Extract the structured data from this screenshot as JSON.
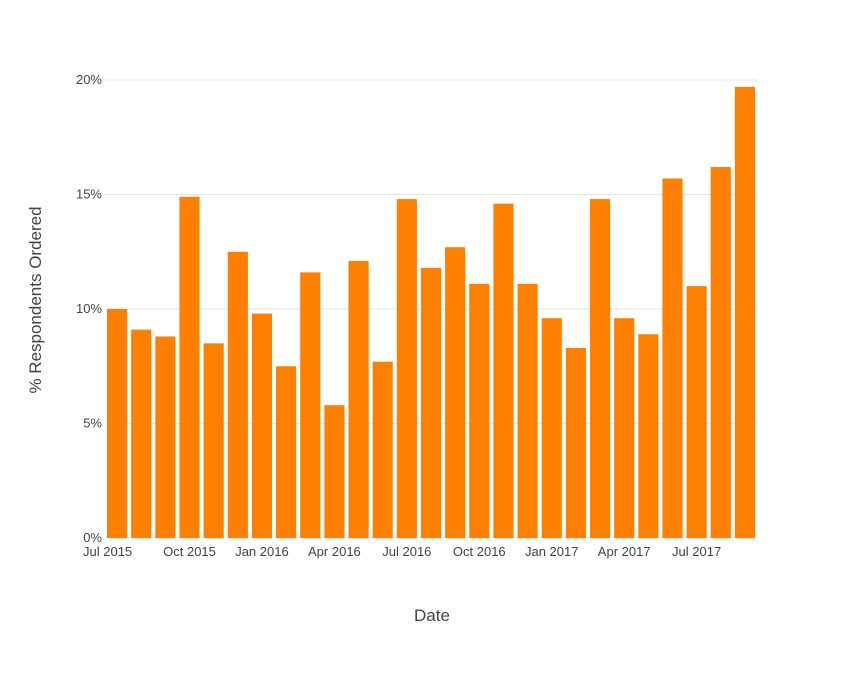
{
  "chart_data": {
    "type": "bar",
    "title": "",
    "xlabel": "Date",
    "ylabel": "% Respondents Ordered",
    "ylim": [
      0,
      20
    ],
    "yticks": [
      {
        "value": 0,
        "label": "0%"
      },
      {
        "value": 5,
        "label": "5%"
      },
      {
        "value": 10,
        "label": "10%"
      },
      {
        "value": 15,
        "label": "15%"
      },
      {
        "value": 20,
        "label": "20%"
      }
    ],
    "xticks": [
      {
        "category": "2015-07",
        "label": "Jul 2015"
      },
      {
        "category": "2015-10",
        "label": "Oct 2015"
      },
      {
        "category": "2016-01",
        "label": "Jan 2016"
      },
      {
        "category": "2016-04",
        "label": "Apr 2016"
      },
      {
        "category": "2016-07",
        "label": "Jul 2016"
      },
      {
        "category": "2016-10",
        "label": "Oct 2016"
      },
      {
        "category": "2017-01",
        "label": "Jan 2017"
      },
      {
        "category": "2017-04",
        "label": "Apr 2017"
      },
      {
        "category": "2017-07",
        "label": "Jul 2017"
      }
    ],
    "categories": [
      "2015-07",
      "2015-08",
      "2015-09",
      "2015-10",
      "2015-11",
      "2015-12",
      "2016-01",
      "2016-02",
      "2016-03",
      "2016-04",
      "2016-05",
      "2016-06",
      "2016-07",
      "2016-08",
      "2016-09",
      "2016-10",
      "2016-11",
      "2016-12",
      "2017-01",
      "2017-02",
      "2017-03",
      "2017-04",
      "2017-05",
      "2017-06",
      "2017-07",
      "2017-08",
      "2017-09"
    ],
    "values": [
      10.0,
      9.1,
      8.8,
      14.9,
      8.5,
      12.5,
      9.8,
      7.5,
      11.6,
      5.8,
      12.1,
      7.7,
      14.8,
      11.8,
      12.7,
      11.1,
      14.6,
      11.1,
      9.6,
      8.3,
      14.8,
      9.6,
      8.9,
      15.7,
      11.0,
      16.2,
      19.7
    ],
    "bar_color": "#ff8000",
    "grid": true,
    "legend": "none"
  }
}
